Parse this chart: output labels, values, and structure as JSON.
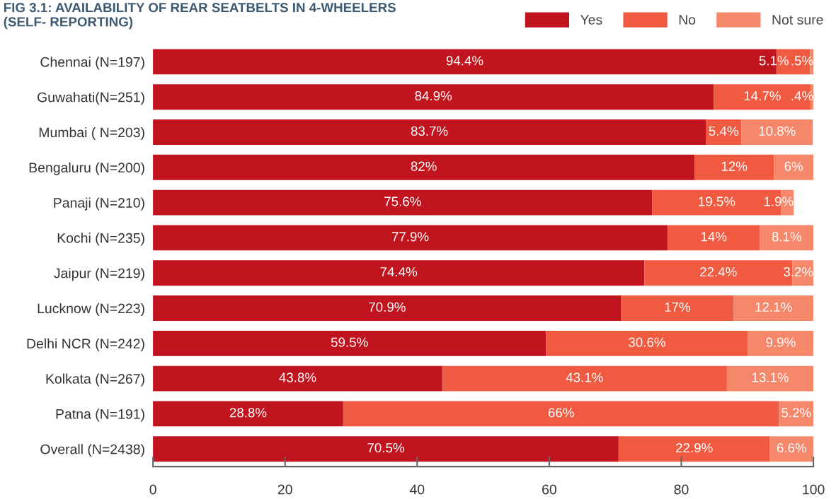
{
  "chart_data": {
    "type": "bar",
    "orientation": "horizontal",
    "stacked": true,
    "title": "FIG 3.1: AVAILABILITY OF REAR SEATBELTS IN 4-WHEELERS\n(SELF- REPORTING)",
    "categories": [
      "Chennai (N=197)",
      "Guwahati(N=251)",
      "Mumbai ( N=203)",
      "Bengaluru (N=200)",
      "Panaji (N=210)",
      "Kochi (N=235)",
      "Jaipur (N=219)",
      "Lucknow (N=223)",
      "Delhi NCR (N=242)",
      "Kolkata (N=267)",
      "Patna (N=191)",
      "Overall (N=2438)"
    ],
    "series": [
      {
        "name": "Yes",
        "color": "#c0141f",
        "values": [
          94.4,
          84.9,
          83.7,
          82,
          75.6,
          77.9,
          74.4,
          70.9,
          59.5,
          43.8,
          28.8,
          70.5
        ],
        "value_labels": [
          "94.4%",
          "84.9%",
          "83.7%",
          "82%",
          "75.6%",
          "77.9%",
          "74.4%",
          "70.9%",
          "59.5%",
          "43.8%",
          "28.8%",
          "70.5%"
        ]
      },
      {
        "name": "No",
        "color": "#f05a40",
        "values": [
          5.1,
          14.7,
          5.4,
          12,
          19.5,
          14,
          22.4,
          17,
          30.6,
          43.1,
          66,
          22.9
        ],
        "value_labels": [
          "5.1%",
          "14.7%",
          "5.4%",
          "12%",
          "19.5%",
          "14%",
          "22.4%",
          "17%",
          "30.6%",
          "43.1%",
          "66%",
          "22.9%"
        ]
      },
      {
        "name": "Not sure",
        "color": "#f5876b",
        "values": [
          0.5,
          0.4,
          10.8,
          6,
          1.9,
          8.1,
          3.2,
          12.1,
          9.9,
          13.1,
          5.2,
          6.6
        ],
        "value_labels": [
          ".5%",
          ".4%",
          "10.8%",
          "6%",
          "1.9%",
          "8.1%",
          "3.2%",
          "12.1%",
          "9.9%",
          "13.1%",
          "5.2%",
          "6.6%"
        ]
      }
    ],
    "xlim": [
      0,
      100
    ],
    "xticks": [
      0,
      20,
      40,
      60,
      80,
      100
    ],
    "grid": false,
    "legend": "top right"
  }
}
